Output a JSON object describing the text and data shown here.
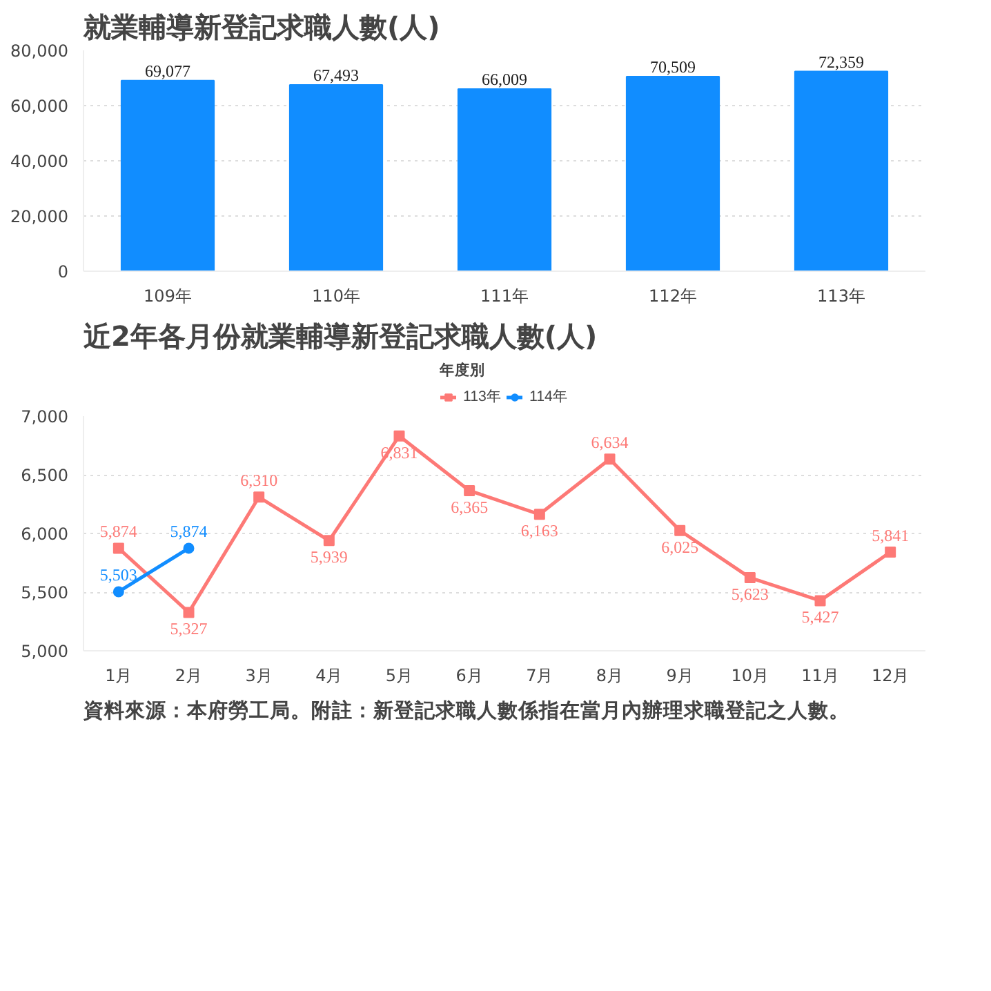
{
  "chart_data": [
    {
      "type": "bar",
      "title": "就業輔導新登記求職人數(人)",
      "categories": [
        "109年",
        "110年",
        "111年",
        "112年",
        "113年"
      ],
      "values": [
        69077,
        67493,
        66009,
        70509,
        72359
      ],
      "color": "#118dff",
      "ylim": [
        0,
        80000
      ],
      "yticks": [
        {
          "value": 0,
          "label": "0"
        },
        {
          "value": 20000,
          "label": "20,000"
        },
        {
          "value": 40000,
          "label": "40,000"
        },
        {
          "value": 60000,
          "label": "60,000"
        },
        {
          "value": 80000,
          "label": "80,000"
        }
      ],
      "grid": "y",
      "value_labels": [
        "69,077",
        "67,493",
        "66,009",
        "70,509",
        "72,359"
      ]
    },
    {
      "type": "line",
      "title": "近2年各月份就業輔導新登記求職人數(人)",
      "legend_title": "年度別",
      "legend": "top",
      "categories": [
        "1月",
        "2月",
        "3月",
        "4月",
        "5月",
        "6月",
        "7月",
        "8月",
        "9月",
        "10月",
        "11月",
        "12月"
      ],
      "series": [
        {
          "name": "113年",
          "color": "#fd7976",
          "marker": "square",
          "values": [
            5874,
            5327,
            6310,
            5939,
            6831,
            6365,
            6163,
            6634,
            6025,
            5623,
            5427,
            5841
          ],
          "value_labels": [
            "5,874",
            "5,327",
            "6,310",
            "5,939",
            "6,831",
            "6,365",
            "6,163",
            "6,634",
            "6,025",
            "5,623",
            "5,427",
            "5,841"
          ]
        },
        {
          "name": "114年",
          "color": "#118dff",
          "marker": "circle",
          "values": [
            5503,
            5874,
            null,
            null,
            null,
            null,
            null,
            null,
            null,
            null,
            null,
            null
          ],
          "value_labels": [
            "5,503",
            "5,874",
            null,
            null,
            null,
            null,
            null,
            null,
            null,
            null,
            null,
            null
          ]
        }
      ],
      "ylim": [
        5000,
        7000
      ],
      "yticks": [
        {
          "value": 5000,
          "label": "5,000"
        },
        {
          "value": 5500,
          "label": "5,500"
        },
        {
          "value": 6000,
          "label": "6,000"
        },
        {
          "value": 6500,
          "label": "6,500"
        },
        {
          "value": 7000,
          "label": "7,000"
        }
      ],
      "grid": "y",
      "line_style": "solid",
      "annotations": [
        "資料來源：本府勞工局。附註：新登記求職人數係指在當月內辦理求職登記之人數。"
      ]
    }
  ]
}
